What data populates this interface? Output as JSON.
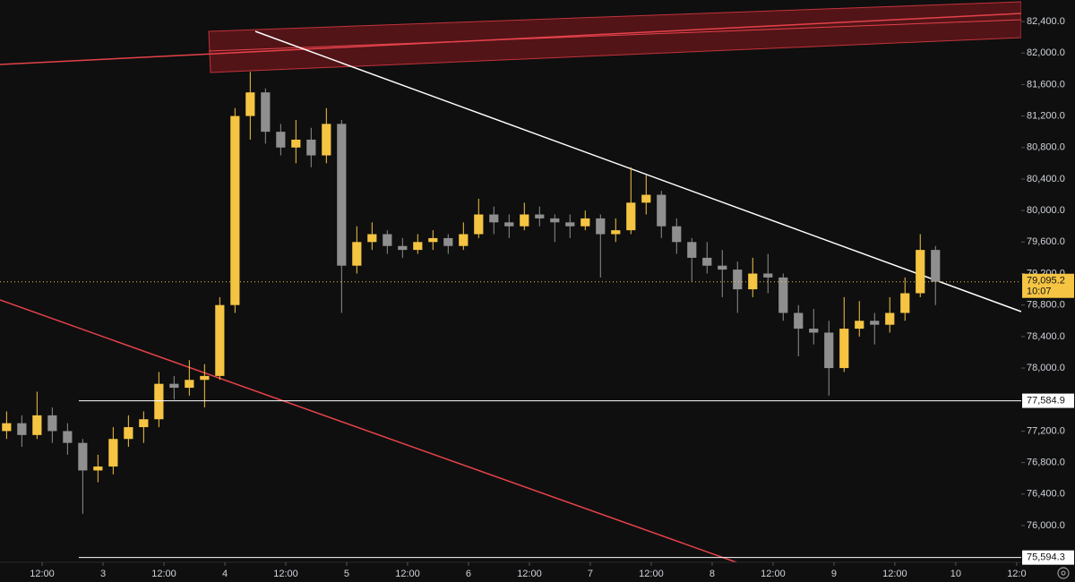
{
  "chart_data": {
    "type": "candlestick",
    "xlim": [
      -8.3,
      192.9
    ],
    "ylim": [
      75568,
      82673
    ],
    "xticks": [
      {
        "value": 0,
        "label": "12:00"
      },
      {
        "value": 12,
        "label": "3"
      },
      {
        "value": 24,
        "label": "12:00"
      },
      {
        "value": 36,
        "label": "4"
      },
      {
        "value": 48,
        "label": "12:00"
      },
      {
        "value": 60,
        "label": "5"
      },
      {
        "value": 72,
        "label": "12:00"
      },
      {
        "value": 84,
        "label": "6"
      },
      {
        "value": 96,
        "label": "12:00"
      },
      {
        "value": 108,
        "label": "7"
      },
      {
        "value": 120,
        "label": "12:00"
      },
      {
        "value": 132,
        "label": "8"
      },
      {
        "value": 144,
        "label": "12:00"
      },
      {
        "value": 156,
        "label": "9"
      },
      {
        "value": 168,
        "label": "12:00"
      },
      {
        "value": 180,
        "label": "10"
      },
      {
        "value": 192,
        "label": "12:0"
      }
    ],
    "yticks": [
      {
        "value": 76000,
        "label": "76,000.0"
      },
      {
        "value": 76400,
        "label": "76,400.0"
      },
      {
        "value": 76800,
        "label": "76,800.0"
      },
      {
        "value": 77200,
        "label": "77,200.0"
      },
      {
        "value": 78000,
        "label": "78,000.0"
      },
      {
        "value": 78400,
        "label": "78,400.0"
      },
      {
        "value": 78800,
        "label": "78,800.0"
      },
      {
        "value": 79200,
        "label": "79,200.0"
      },
      {
        "value": 79600,
        "label": "79,600.0"
      },
      {
        "value": 80000,
        "label": "80,000.0"
      },
      {
        "value": 80400,
        "label": "80,400.0"
      },
      {
        "value": 80800,
        "label": "80,800.0"
      },
      {
        "value": 81200,
        "label": "81,200.0"
      },
      {
        "value": 81600,
        "label": "81,600.0"
      },
      {
        "value": 82000,
        "label": "82,000.0"
      },
      {
        "value": 82400,
        "label": "82,400.0"
      }
    ],
    "up_color": "#f5c443",
    "down_color": "#8f8f8f",
    "x": [
      -7,
      -4,
      -1,
      2,
      5,
      8,
      11,
      14,
      17,
      20,
      23,
      26,
      29,
      32,
      35,
      38,
      41,
      44,
      47,
      50,
      53,
      56,
      59,
      62,
      65,
      68,
      71,
      74,
      77,
      80,
      83,
      86,
      89,
      92,
      95,
      98,
      101,
      104,
      107,
      110,
      113,
      116,
      119,
      122,
      125,
      128,
      131,
      134,
      137,
      140,
      143,
      146,
      149,
      152,
      155,
      158,
      161,
      164,
      167,
      170,
      173,
      176
    ],
    "candles": [
      [
        77200,
        77450,
        77100,
        77300
      ],
      [
        77300,
        77400,
        77000,
        77150
      ],
      [
        77150,
        77700,
        77100,
        77400
      ],
      [
        77400,
        77500,
        77050,
        77200
      ],
      [
        77200,
        77300,
        76900,
        77050
      ],
      [
        77050,
        77100,
        76150,
        76700
      ],
      [
        76700,
        76900,
        76550,
        76750
      ],
      [
        76750,
        77250,
        76650,
        77100
      ],
      [
        77100,
        77400,
        77000,
        77250
      ],
      [
        77250,
        77450,
        77050,
        77350
      ],
      [
        77350,
        77950,
        77250,
        77800
      ],
      [
        77800,
        77900,
        77600,
        77750
      ],
      [
        77750,
        78100,
        77650,
        77850
      ],
      [
        77850,
        78050,
        77500,
        77900
      ],
      [
        77900,
        78900,
        77850,
        78800
      ],
      [
        78800,
        81300,
        78700,
        81200
      ],
      [
        81200,
        81760,
        80900,
        81500
      ],
      [
        81500,
        81550,
        80850,
        81000
      ],
      [
        81000,
        81100,
        80700,
        80800
      ],
      [
        80800,
        81150,
        80600,
        80900
      ],
      [
        80900,
        81050,
        80550,
        80700
      ],
      [
        80700,
        81300,
        80600,
        81100
      ],
      [
        81100,
        81150,
        78700,
        79300
      ],
      [
        79300,
        79800,
        79200,
        79600
      ],
      [
        79600,
        79850,
        79500,
        79700
      ],
      [
        79700,
        79750,
        79450,
        79550
      ],
      [
        79550,
        79650,
        79400,
        79500
      ],
      [
        79500,
        79700,
        79450,
        79600
      ],
      [
        79600,
        79750,
        79500,
        79650
      ],
      [
        79650,
        79700,
        79450,
        79550
      ],
      [
        79550,
        79850,
        79500,
        79700
      ],
      [
        79700,
        80150,
        79650,
        79950
      ],
      [
        79950,
        80050,
        79700,
        79850
      ],
      [
        79850,
        79950,
        79650,
        79800
      ],
      [
        79800,
        80100,
        79750,
        79950
      ],
      [
        79950,
        80050,
        79800,
        79900
      ],
      [
        79900,
        79950,
        79600,
        79850
      ],
      [
        79850,
        79950,
        79650,
        79800
      ],
      [
        79800,
        80000,
        79750,
        79900
      ],
      [
        79900,
        79950,
        79150,
        79700
      ],
      [
        79700,
        79900,
        79600,
        79750
      ],
      [
        79750,
        80550,
        79700,
        80100
      ],
      [
        80100,
        80450,
        79950,
        80200
      ],
      [
        80200,
        80250,
        79650,
        79800
      ],
      [
        79800,
        79900,
        79450,
        79600
      ],
      [
        79600,
        79650,
        79100,
        79400
      ],
      [
        79400,
        79600,
        79200,
        79300
      ],
      [
        79300,
        79500,
        78900,
        79250
      ],
      [
        79250,
        79350,
        78700,
        79000
      ],
      [
        79000,
        79400,
        78900,
        79200
      ],
      [
        79200,
        79450,
        78950,
        79150
      ],
      [
        79150,
        79200,
        78600,
        78700
      ],
      [
        78700,
        78800,
        78150,
        78500
      ],
      [
        78500,
        78750,
        78300,
        78450
      ],
      [
        78450,
        78600,
        77650,
        78000
      ],
      [
        78000,
        78900,
        77950,
        78500
      ],
      [
        78500,
        78850,
        78400,
        78600
      ],
      [
        78600,
        78700,
        78300,
        78550
      ],
      [
        78550,
        78900,
        78450,
        78700
      ],
      [
        78700,
        79150,
        78600,
        78950
      ],
      [
        78950,
        79700,
        78900,
        79500
      ],
      [
        79500,
        79550,
        78800,
        79095.2
      ]
    ],
    "price_lines": [
      {
        "value": 77584.9,
        "label": "77,584.9"
      },
      {
        "value": 75594.3,
        "label": "75,594.3"
      }
    ],
    "last_price": {
      "value": 79095.2,
      "label": "79,095.2"
    },
    "countdown": "10:07"
  }
}
